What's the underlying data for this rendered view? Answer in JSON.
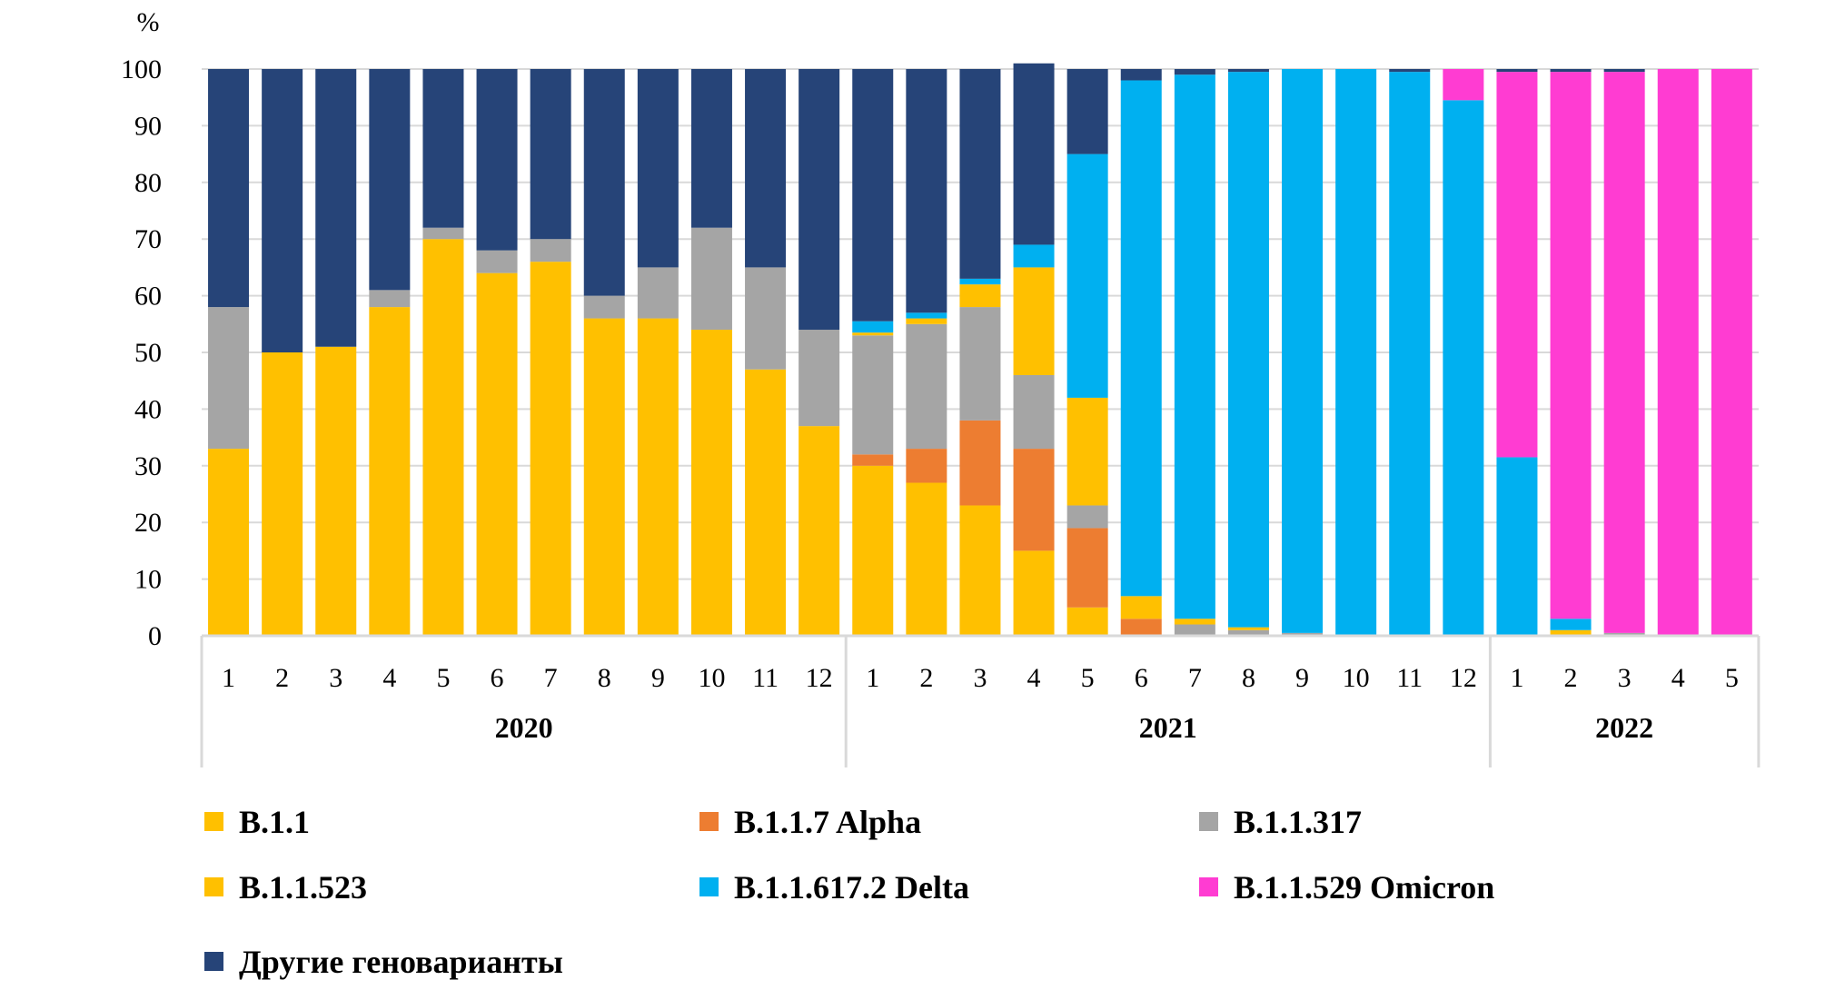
{
  "chart_data": {
    "type": "bar",
    "stacked": true,
    "y_unit": "%",
    "ylim": [
      0,
      100
    ],
    "yticks": [
      "0",
      "10",
      "20",
      "30",
      "40",
      "50",
      "60",
      "70",
      "80",
      "90",
      "100"
    ],
    "grid": true,
    "legend_position": "bottom",
    "years": [
      {
        "label": "2020",
        "months": 12
      },
      {
        "label": "2021",
        "months": 12
      },
      {
        "label": "2022",
        "months": 5
      }
    ],
    "categories": [
      "1",
      "2",
      "3",
      "4",
      "5",
      "6",
      "7",
      "8",
      "9",
      "10",
      "11",
      "12",
      "1",
      "2",
      "3",
      "4",
      "5",
      "6",
      "7",
      "8",
      "9",
      "10",
      "11",
      "12",
      "1",
      "2",
      "3",
      "4",
      "5"
    ],
    "series": [
      {
        "name": "B.1.1",
        "color": "#FFC000",
        "values": [
          33,
          50,
          51,
          58,
          70,
          64,
          66,
          56,
          56,
          54,
          47,
          37,
          30,
          27,
          23,
          15,
          5,
          0,
          0,
          0,
          0,
          0,
          0,
          0,
          0,
          0,
          0,
          0,
          0
        ]
      },
      {
        "name": "B.1.1.7 Alpha",
        "color": "#ED7D31",
        "values": [
          0,
          0,
          0,
          0,
          0,
          0,
          0,
          0,
          0,
          0,
          0,
          0,
          2,
          6,
          15,
          18,
          14,
          3,
          0,
          0,
          0,
          0,
          0,
          0,
          0,
          0,
          0,
          0,
          0
        ]
      },
      {
        "name": "B.1.1.317",
        "color": "#A5A5A5",
        "values": [
          25,
          0,
          0,
          3,
          2,
          4,
          4,
          4,
          9,
          18,
          18,
          17,
          21,
          22,
          20,
          13,
          4,
          0,
          2,
          1,
          0.5,
          0,
          0,
          0,
          0,
          0,
          0.5,
          0,
          0
        ]
      },
      {
        "name": "B.1.1.523",
        "color": "#FFC000",
        "values": [
          0,
          0,
          0,
          0,
          0,
          0,
          0,
          0,
          0,
          0,
          0,
          0,
          0.5,
          1,
          4,
          19,
          19,
          4,
          1,
          0.5,
          0,
          0,
          0,
          0,
          0,
          1,
          0,
          0,
          0
        ]
      },
      {
        "name": "B.1.1.617.2 Delta",
        "color": "#00B0F0",
        "values": [
          0,
          0,
          0,
          0,
          0,
          0,
          0,
          0,
          0,
          0,
          0,
          0,
          2,
          1,
          1,
          4,
          43,
          91,
          96,
          98,
          99.5,
          100,
          99.5,
          94.5,
          31.5,
          2,
          0,
          0,
          0
        ]
      },
      {
        "name": "B.1.1.529 Omicron",
        "color": "#FF3CD2",
        "values": [
          0,
          0,
          0,
          0,
          0,
          0,
          0,
          0,
          0,
          0,
          0,
          0,
          0,
          0,
          0,
          0,
          0,
          0,
          0,
          0,
          0,
          0,
          0,
          5.5,
          68,
          96.5,
          99,
          100,
          100
        ]
      },
      {
        "name": "Другие геноварианты",
        "color": "#264478",
        "values": [
          42,
          50,
          49,
          39,
          28,
          32,
          30,
          40,
          35,
          28,
          35,
          46,
          44.5,
          43,
          37,
          32,
          15,
          2,
          1,
          0.5,
          0,
          0,
          0.5,
          0,
          0.5,
          0.5,
          0.5,
          0,
          0
        ]
      }
    ],
    "legend": [
      {
        "name": "B.1.1",
        "color": "#FFC000"
      },
      {
        "name": "B.1.1.7 Alpha",
        "color": "#ED7D31"
      },
      {
        "name": "B.1.1.317",
        "color": "#A5A5A5"
      },
      {
        "name": "B.1.1.523",
        "color": "#FFC000"
      },
      {
        "name": "B.1.1.617.2 Delta",
        "color": "#00B0F0"
      },
      {
        "name": "B.1.1.529 Omicron",
        "color": "#FF3CD2"
      },
      {
        "name": "Другие геноварианты",
        "color": "#264478"
      }
    ]
  }
}
